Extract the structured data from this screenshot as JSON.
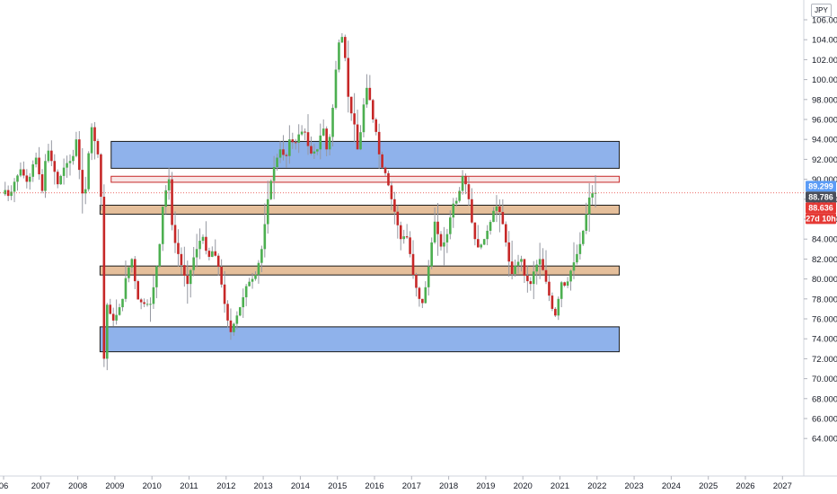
{
  "header": {
    "currency": "JPY"
  },
  "price_axis": {
    "labels": [
      "106.000",
      "104.000",
      "102.000",
      "100.000",
      "98.000",
      "96.000",
      "94.000",
      "92.000",
      "90.000",
      "88.000",
      "86.000",
      "84.000",
      "82.000",
      "80.000",
      "78.000",
      "76.000",
      "74.000",
      "72.000",
      "70.000",
      "68.000",
      "66.000",
      "64.000"
    ]
  },
  "time_axis": {
    "labels": [
      "06",
      "2007",
      "2008",
      "2009",
      "2010",
      "2011",
      "2012",
      "2013",
      "2014",
      "2015",
      "2016",
      "2017",
      "2018",
      "2019",
      "2020",
      "2021",
      "2022",
      "2023",
      "2024",
      "2025",
      "2026",
      "2027"
    ]
  },
  "price_tags": [
    {
      "text": "89.299",
      "value": 89.299,
      "bg": "#5b9cf6",
      "fg": "#ffffff"
    },
    {
      "text": "88.786",
      "value": 88.786,
      "bg": "#4a4e5a",
      "fg": "#ffffff"
    },
    {
      "text": "88.636",
      "value": 88.636,
      "bg": "#e53935",
      "fg": "#ffffff"
    },
    {
      "text": "27d 10h",
      "value": 87.95,
      "bg": "#e53935",
      "fg": "#ffffff"
    }
  ],
  "colors": {
    "up": "#4caf50",
    "down": "#c62828",
    "wick": "#9598a1",
    "support_zone": "#7ba4e8",
    "tan_zone": "#e0b48a",
    "red_zone": "#f4d6d6",
    "zone_border": "#1a1a1a"
  },
  "chart_data": {
    "type": "candlestick",
    "timeframe": "monthly",
    "title": "",
    "xlabel": "",
    "ylabel": "",
    "x_range": [
      2006.0,
      2027.5
    ],
    "ylim": [
      63,
      107
    ],
    "last_price": 88.636,
    "zones": [
      {
        "kind": "support_zone",
        "y_from": 91.1,
        "y_to": 93.8,
        "x_from": 2008.9,
        "x_to": 2022.6
      },
      {
        "kind": "red_zone",
        "y_from": 89.7,
        "y_to": 90.3,
        "x_from": 2008.9,
        "x_to": 2022.6
      },
      {
        "kind": "tan_zone",
        "y_from": 86.5,
        "y_to": 87.4,
        "x_from": 2008.6,
        "x_to": 2022.6
      },
      {
        "kind": "tan_zone",
        "y_from": 80.4,
        "y_to": 81.3,
        "x_from": 2008.6,
        "x_to": 2022.6
      },
      {
        "kind": "support_zone",
        "y_from": 72.7,
        "y_to": 75.2,
        "x_from": 2008.6,
        "x_to": 2022.6
      }
    ],
    "anchors": [
      [
        2006.0,
        88.5
      ],
      [
        2006.1,
        89.0
      ],
      [
        2006.2,
        88.0
      ],
      [
        2006.3,
        89.5
      ],
      [
        2006.5,
        91.0
      ],
      [
        2006.7,
        89.5
      ],
      [
        2006.9,
        92.5
      ],
      [
        2007.1,
        88.5
      ],
      [
        2007.2,
        93.5
      ],
      [
        2007.4,
        91.0
      ],
      [
        2007.5,
        89.5
      ],
      [
        2007.7,
        91.5
      ],
      [
        2007.9,
        92.0
      ],
      [
        2008.0,
        94.0
      ],
      [
        2008.15,
        88.5
      ],
      [
        2008.25,
        89.0
      ],
      [
        2008.4,
        95.5
      ],
      [
        2008.55,
        93.0
      ],
      [
        2008.65,
        91.5
      ],
      [
        2008.75,
        72.0
      ],
      [
        2008.85,
        78.5
      ],
      [
        2008.95,
        75.5
      ],
      [
        2009.1,
        76.5
      ],
      [
        2009.25,
        78.0
      ],
      [
        2009.35,
        80.5
      ],
      [
        2009.5,
        82.0
      ],
      [
        2009.65,
        78.0
      ],
      [
        2009.8,
        77.5
      ],
      [
        2010.0,
        77.5
      ],
      [
        2010.1,
        79.5
      ],
      [
        2010.25,
        83.5
      ],
      [
        2010.35,
        88.0
      ],
      [
        2010.5,
        90.0
      ],
      [
        2010.6,
        84.5
      ],
      [
        2010.75,
        82.5
      ],
      [
        2010.9,
        80.5
      ],
      [
        2011.0,
        79.5
      ],
      [
        2011.15,
        82.0
      ],
      [
        2011.3,
        83.5
      ],
      [
        2011.4,
        84.5
      ],
      [
        2011.55,
        82.0
      ],
      [
        2011.7,
        83.0
      ],
      [
        2011.85,
        81.0
      ],
      [
        2012.0,
        77.5
      ],
      [
        2012.15,
        74.5
      ],
      [
        2012.3,
        76.0
      ],
      [
        2012.45,
        77.5
      ],
      [
        2012.6,
        79.5
      ],
      [
        2012.75,
        80.0
      ],
      [
        2012.85,
        80.5
      ],
      [
        2013.0,
        83.0
      ],
      [
        2013.1,
        86.0
      ],
      [
        2013.2,
        89.0
      ],
      [
        2013.35,
        91.5
      ],
      [
        2013.5,
        93.0
      ],
      [
        2013.65,
        92.0
      ],
      [
        2013.75,
        94.0
      ],
      [
        2013.9,
        93.5
      ],
      [
        2014.0,
        94.5
      ],
      [
        2014.15,
        95.0
      ],
      [
        2014.3,
        92.5
      ],
      [
        2014.5,
        93.0
      ],
      [
        2014.65,
        95.5
      ],
      [
        2014.75,
        93.0
      ],
      [
        2014.85,
        94.5
      ],
      [
        2014.95,
        98.5
      ],
      [
        2015.05,
        103.5
      ],
      [
        2015.2,
        104.5
      ],
      [
        2015.35,
        97.5
      ],
      [
        2015.5,
        95.5
      ],
      [
        2015.6,
        92.5
      ],
      [
        2015.75,
        97.5
      ],
      [
        2015.85,
        99.5
      ],
      [
        2016.0,
        96.0
      ],
      [
        2016.1,
        94.5
      ],
      [
        2016.2,
        91.5
      ],
      [
        2016.35,
        90.5
      ],
      [
        2016.5,
        88.0
      ],
      [
        2016.6,
        86.5
      ],
      [
        2016.75,
        84.0
      ],
      [
        2016.9,
        84.5
      ],
      [
        2017.0,
        82.5
      ],
      [
        2017.1,
        80.0
      ],
      [
        2017.25,
        78.0
      ],
      [
        2017.35,
        77.5
      ],
      [
        2017.45,
        80.0
      ],
      [
        2017.55,
        82.5
      ],
      [
        2017.65,
        86.0
      ],
      [
        2017.75,
        84.5
      ],
      [
        2017.85,
        83.0
      ],
      [
        2018.0,
        84.5
      ],
      [
        2018.15,
        87.5
      ],
      [
        2018.3,
        88.0
      ],
      [
        2018.4,
        90.5
      ],
      [
        2018.55,
        89.0
      ],
      [
        2018.65,
        86.0
      ],
      [
        2018.75,
        84.0
      ],
      [
        2018.85,
        83.0
      ],
      [
        2019.0,
        84.0
      ],
      [
        2019.15,
        85.5
      ],
      [
        2019.3,
        87.5
      ],
      [
        2019.45,
        86.5
      ],
      [
        2019.55,
        84.5
      ],
      [
        2019.65,
        82.0
      ],
      [
        2019.75,
        80.5
      ],
      [
        2019.85,
        81.5
      ],
      [
        2020.0,
        82.0
      ],
      [
        2020.1,
        80.0
      ],
      [
        2020.25,
        79.5
      ],
      [
        2020.35,
        81.0
      ],
      [
        2020.5,
        82.0
      ],
      [
        2020.65,
        80.0
      ],
      [
        2020.8,
        77.5
      ],
      [
        2020.9,
        76.0
      ],
      [
        2021.0,
        78.0
      ],
      [
        2021.1,
        80.0
      ],
      [
        2021.2,
        79.0
      ],
      [
        2021.3,
        80.5
      ],
      [
        2021.45,
        82.0
      ],
      [
        2021.55,
        83.0
      ],
      [
        2021.65,
        84.5
      ],
      [
        2021.75,
        86.5
      ],
      [
        2021.85,
        88.5
      ],
      [
        2021.95,
        88.64
      ]
    ]
  }
}
